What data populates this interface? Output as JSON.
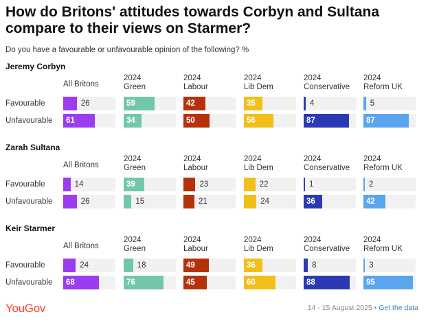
{
  "header": {
    "title": "How do Britons' attitudes towards Corbyn and Sultana compare to their views on Starmer?",
    "subtitle": "Do you have a favourable or unfavourable opinion of the following? %"
  },
  "footer": {
    "logo": "YouGov",
    "date": "14 - 15 August 2025 •",
    "link": "Get the data"
  },
  "chart_data": {
    "type": "bar",
    "title": "How do Britons' attitudes towards Corbyn and Sultana compare to their views on Starmer?",
    "subtitle": "Do you have a favourable or unfavourable opinion of the following? %",
    "xlim": [
      0,
      100
    ],
    "groups": [
      {
        "line1": "",
        "line2": "All Britons",
        "color": "#9b3cf0"
      },
      {
        "line1": "2024",
        "line2": "Green",
        "color": "#72c7a8"
      },
      {
        "line1": "2024",
        "line2": "Labour",
        "color": "#b5310c"
      },
      {
        "line1": "2024",
        "line2": "Lib Dem",
        "color": "#f2be1a"
      },
      {
        "line1": "2024",
        "line2": "Conservative",
        "color": "#2b3ab4"
      },
      {
        "line1": "2024",
        "line2": "Reform UK",
        "color": "#5ba4ee"
      }
    ],
    "categories": [
      "Favourable",
      "Unfavourable"
    ],
    "panels": [
      {
        "name": "Jeremy Corbyn",
        "series": [
          {
            "name": "Favourable",
            "values": [
              26,
              59,
              42,
              35,
              4,
              5
            ]
          },
          {
            "name": "Unfavourable",
            "values": [
              61,
              34,
              50,
              56,
              87,
              87
            ]
          }
        ]
      },
      {
        "name": "Zarah Sultana",
        "series": [
          {
            "name": "Favourable",
            "values": [
              14,
              39,
              23,
              22,
              1,
              2
            ]
          },
          {
            "name": "Unfavourable",
            "values": [
              26,
              15,
              21,
              24,
              36,
              42
            ]
          }
        ]
      },
      {
        "name": "Keir Starmer",
        "series": [
          {
            "name": "Favourable",
            "values": [
              24,
              18,
              49,
              36,
              8,
              3
            ]
          },
          {
            "name": "Unfavourable",
            "values": [
              68,
              76,
              45,
              60,
              88,
              95
            ]
          }
        ]
      }
    ]
  }
}
